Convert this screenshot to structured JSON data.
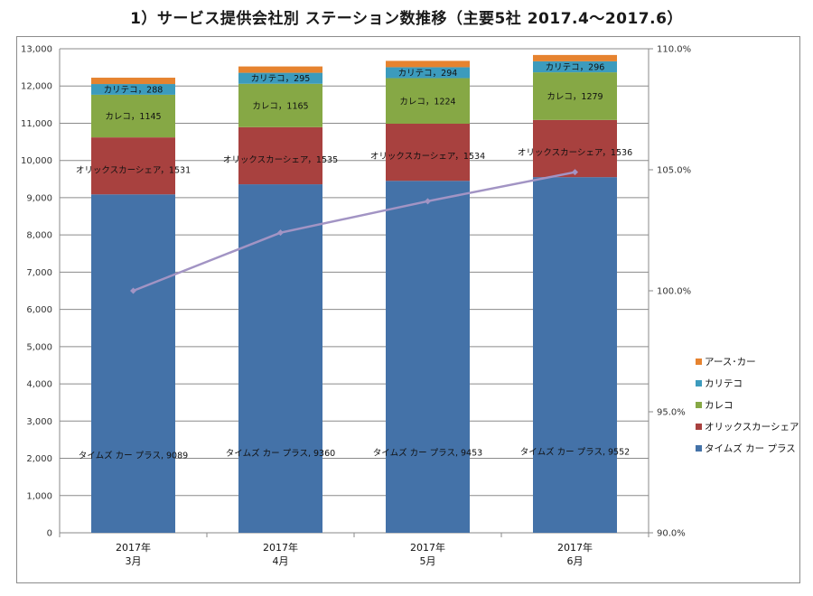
{
  "title": "1）サービス提供会社別 ステーション数推移（主要5社 2017.4～2017.6）",
  "chart_data": {
    "type": "bar",
    "stacked": true,
    "categories": [
      [
        "2017年",
        "3月"
      ],
      [
        "2017年",
        "4月"
      ],
      [
        "2017年",
        "5月"
      ],
      [
        "2017年",
        "6月"
      ]
    ],
    "series": [
      {
        "name": "タイムズ カー プラス",
        "color": "#4472a8",
        "values": [
          9089,
          9360,
          9453,
          9552
        ]
      },
      {
        "name": "オリックスカーシェア",
        "color": "#a8413f",
        "values": [
          1531,
          1535,
          1534,
          1536
        ]
      },
      {
        "name": "カレコ",
        "color": "#86a845",
        "values": [
          1145,
          1165,
          1224,
          1279
        ]
      },
      {
        "name": "カリテコ",
        "color": "#3c9bbd",
        "values": [
          288,
          295,
          294,
          296
        ]
      },
      {
        "name": "アース･カー",
        "color": "#e6832f",
        "values": [
          170,
          170,
          170,
          170
        ]
      }
    ],
    "secondary_line": {
      "color": "#a294c4",
      "values": [
        100.0,
        102.4,
        103.7,
        104.9
      ]
    },
    "ylim": [
      0,
      13000
    ],
    "yticks": [
      "0",
      "1,000",
      "2,000",
      "3,000",
      "4,000",
      "5,000",
      "6,000",
      "7,000",
      "8,000",
      "9,000",
      "10,000",
      "11,000",
      "12,000",
      "13,000"
    ],
    "y2lim": [
      90,
      110
    ],
    "y2ticks": [
      "90.0%",
      "95.0%",
      "100.0%",
      "105.0%",
      "110.0%"
    ],
    "grid": true,
    "legend_position": "right"
  }
}
